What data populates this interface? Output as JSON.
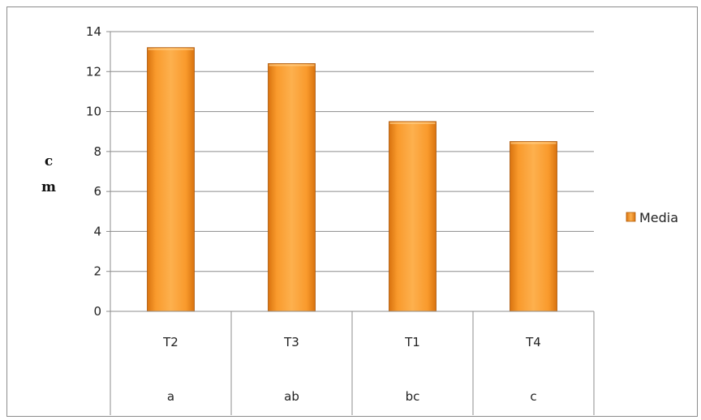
{
  "chart_data": {
    "type": "bar",
    "categories": [
      "T2",
      "T3",
      "T1",
      "T4"
    ],
    "groups": [
      "a",
      "ab",
      "bc",
      "c"
    ],
    "series": [
      {
        "name": "Media",
        "values": [
          13.2,
          12.4,
          9.5,
          8.5
        ]
      }
    ],
    "ylabel_lines": [
      "c",
      "m"
    ],
    "ylim": [
      0,
      14
    ],
    "yticks": [
      0,
      2,
      4,
      6,
      8,
      10,
      12,
      14
    ],
    "grid": true,
    "legend": "right",
    "colors": {
      "bar": "#f7931e",
      "bar_light": "#fdb55a",
      "bar_dark": "#c8650a",
      "grid": "#8c8c8c"
    }
  }
}
